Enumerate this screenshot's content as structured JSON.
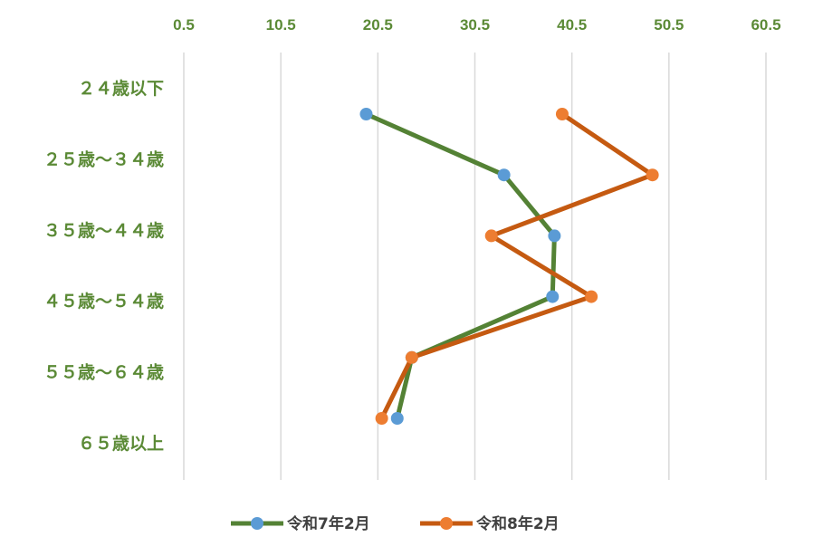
{
  "chart_data": {
    "type": "line",
    "orientation": "horizontal-values",
    "x_ticks": [
      "0.5",
      "10.5",
      "20.5",
      "30.5",
      "40.5",
      "50.5",
      "60.5"
    ],
    "xlim": [
      0.5,
      65.5
    ],
    "grid": true,
    "legend_position": "bottom",
    "categories": [
      "２４歳以下",
      "２５歳～３４歳",
      "３５歳～４４歳",
      "４５歳～５４歳",
      "５５歳～６４歳",
      "６５歳以上"
    ],
    "series": [
      {
        "name": "令和7年2月",
        "values": [
          19.3,
          33.5,
          38.7,
          38.5,
          24.0,
          22.5
        ]
      },
      {
        "name": "令和8年2月",
        "values": [
          39.5,
          48.8,
          32.2,
          42.5,
          24.0,
          20.9
        ]
      }
    ],
    "colors": {
      "axis_text": "#5b8a36",
      "series_1_line": "#548235",
      "series_1_marker": "#5b9bd5",
      "series_2_line": "#c55a11",
      "series_2_marker": "#ed7d31",
      "grid": "#d9d9d9"
    }
  }
}
